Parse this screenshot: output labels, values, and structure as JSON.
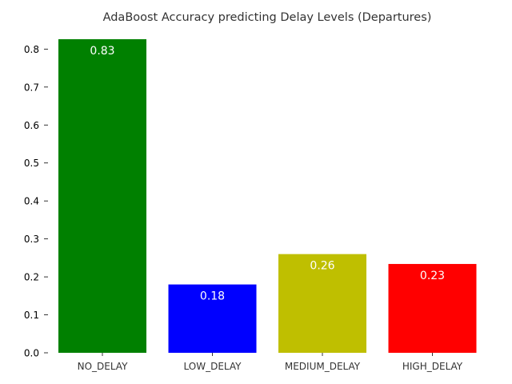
{
  "chart_data": {
    "type": "bar",
    "title": "AdaBoost Accuracy predicting Delay Levels (Departures)",
    "xlabel": "",
    "ylabel": "",
    "categories": [
      "NO_DELAY",
      "LOW_DELAY",
      "MEDIUM_DELAY",
      "HIGH_DELAY"
    ],
    "values": [
      0.826,
      0.18,
      0.26,
      0.234
    ],
    "data_labels": [
      "0.83",
      "0.18",
      "0.26",
      "0.23"
    ],
    "colors": [
      "#008000",
      "#0000ff",
      "#bfbf00",
      "#ff0000"
    ],
    "ylim": [
      0,
      0.845
    ],
    "yticks": [
      0.0,
      0.1,
      0.2,
      0.3,
      0.4,
      0.5,
      0.6,
      0.7,
      0.8
    ],
    "ytick_labels": [
      "0.0",
      "0.1",
      "0.2",
      "0.3",
      "0.4",
      "0.5",
      "0.6",
      "0.7",
      "0.8"
    ],
    "grid": false,
    "legend": "none"
  }
}
